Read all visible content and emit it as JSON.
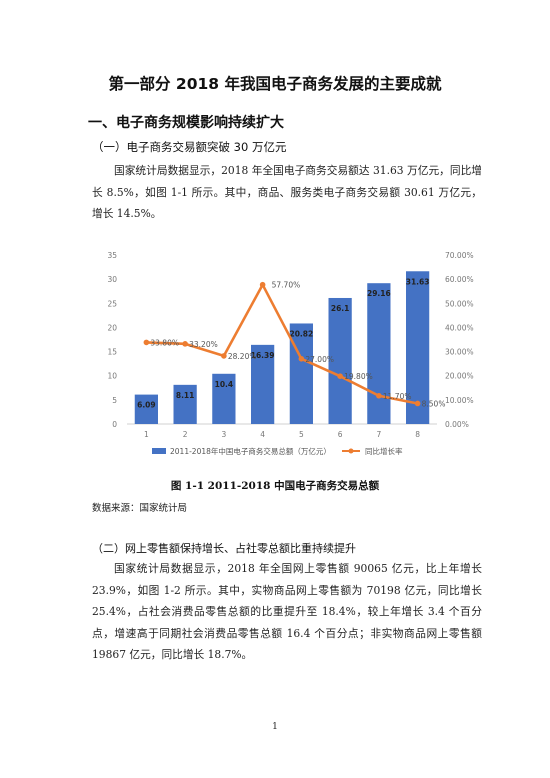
{
  "document": {
    "title": "第一部分  2018 年我国电子商务发展的主要成就",
    "section1_heading": "一、电子商务规模影响持续扩大",
    "subsection1_heading": "（一）电子商务交易额突破 30 万亿元",
    "paragraph1": "国家统计局数据显示，2018 年全国电子商务交易额达 31.63 万亿元，同比增长 8.5%，如图 1-1 所示。其中，商品、服务类电子商务交易额 30.61 万亿元，增长 14.5%。",
    "figure_caption": "图 1-1    2011-2018 中国电子商务交易总额",
    "figure_source": "数据来源：国家统计局",
    "subsection2_heading": "（二）网上零售额保持增长、占社零总额比重持续提升",
    "paragraph2": "国家统计局数据显示，2018 年全国网上零售额 90065 亿元，比上年增长 23.9%，如图 1-2 所示。其中，实物商品网上零售额为 70198 亿元，同比增长 25.4%，占社会消费品零售总额的比重提升至 18.4%，较上年增长 3.4 个百分点，增速高于同期社会消费品零售总额 16.4 个百分点；非实物商品网上零售额 19867 亿元，同比增长 18.7%。",
    "page_number": "1"
  },
  "chart_data": {
    "type": "bar",
    "categories": [
      "1",
      "2",
      "3",
      "4",
      "5",
      "6",
      "7",
      "8"
    ],
    "series": [
      {
        "name": "2011-2018年中国电子商务交易总额（万亿元）",
        "type": "bar",
        "axis": "left",
        "color": "#4472C4",
        "values": [
          6.09,
          8.11,
          10.4,
          16.39,
          20.82,
          26.1,
          29.16,
          31.63
        ],
        "labels": [
          "6.09",
          "8.11",
          "10.4",
          "16.39",
          "20.82",
          "26.1",
          "29.16",
          "31.63"
        ]
      },
      {
        "name": "同比增长率",
        "type": "line",
        "axis": "right",
        "color": "#ED7D31",
        "values": [
          33.8,
          33.2,
          28.2,
          57.7,
          27.0,
          19.8,
          11.7,
          8.5
        ],
        "labels": [
          "33.80%",
          "33.20%",
          "28.20%",
          "57.70%",
          "27.00%",
          "19.80%",
          "11.70%",
          "8.50%"
        ]
      }
    ],
    "y_left": {
      "min": 0,
      "max": 35,
      "ticks": [
        "0",
        "5",
        "10",
        "15",
        "20",
        "25",
        "30",
        "35"
      ]
    },
    "y_right": {
      "min": 0,
      "max": 70,
      "ticks": [
        "0.00%",
        "10.00%",
        "20.00%",
        "30.00%",
        "40.00%",
        "50.00%",
        "60.00%",
        "70.00%"
      ]
    },
    "grid": false,
    "legend_position": "bottom"
  }
}
